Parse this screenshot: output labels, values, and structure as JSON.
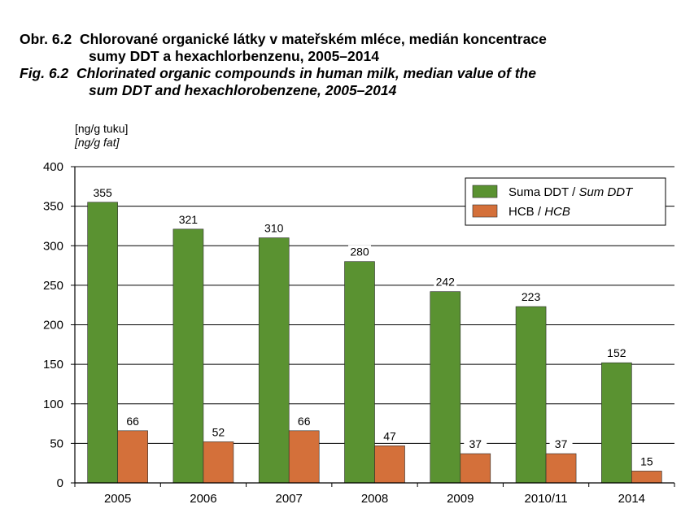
{
  "figure": {
    "title_cz_label": "Obr. 6.2",
    "title_cz_line1": "Chlorované organické látky v mateřském mléce, medián koncentrace",
    "title_cz_line2": "sumy DDT a hexachlorbenzenu, 2005–2014",
    "title_en_label": "Fig. 6.2",
    "title_en_line1": "Chlorinated organic compounds in human milk, median value of the",
    "title_en_line2": "sum DDT and hexachlorobenzene, 2005–2014",
    "unit_cz": "[ng/g tuku]",
    "unit_en": "[ng/g fat]"
  },
  "chart_data": {
    "type": "bar",
    "categories": [
      "2005",
      "2006",
      "2007",
      "2008",
      "2009",
      "2010/11",
      "2014"
    ],
    "series": [
      {
        "name_cz": "Suma DDT",
        "name_en": "Sum DDT",
        "color": "#5a9231",
        "values": [
          355,
          321,
          310,
          280,
          242,
          223,
          152
        ]
      },
      {
        "name_cz": "HCB",
        "name_en": "HCB",
        "color": "#d4703a",
        "values": [
          66,
          52,
          66,
          47,
          37,
          37,
          15
        ]
      }
    ],
    "ylabel_cz": "[ng/g tuku]",
    "ylabel_en": "[ng/g fat]",
    "ylim": [
      0,
      400
    ],
    "yticks": [
      0,
      50,
      100,
      150,
      200,
      250,
      300,
      350,
      400
    ],
    "grid": true,
    "legend_position": "top-right",
    "data_labels": true
  }
}
